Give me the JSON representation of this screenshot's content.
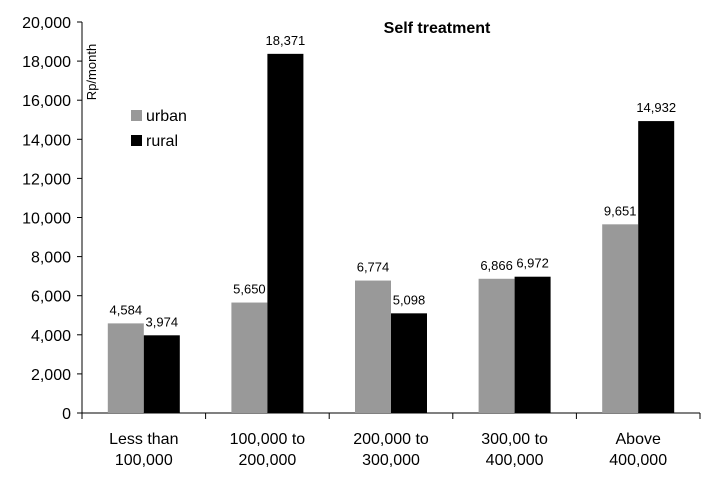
{
  "chart_data": {
    "type": "bar",
    "title": "Self treatment",
    "ylabel": "Rp/month",
    "xlabel": "",
    "categories": [
      [
        "Less than",
        "100,000"
      ],
      [
        "100,000 to",
        "200,000"
      ],
      [
        "200,000 to",
        "300,000"
      ],
      [
        "300,00 to",
        "400,000"
      ],
      [
        "Above",
        "400,000"
      ]
    ],
    "series": [
      {
        "name": "urban",
        "color": "#999999",
        "values": [
          4584,
          5650,
          6774,
          6866,
          9651
        ],
        "labels": [
          "4,584",
          "5,650",
          "6,774",
          "6,866",
          "9,651"
        ]
      },
      {
        "name": "rural",
        "color": "#000000",
        "values": [
          3974,
          18371,
          5098,
          6972,
          14932
        ],
        "labels": [
          "3,974",
          "18,371",
          "5,098",
          "6,972",
          "14,932"
        ]
      }
    ],
    "ylim": [
      0,
      20000
    ],
    "yticks": [
      0,
      2000,
      4000,
      6000,
      8000,
      10000,
      12000,
      14000,
      16000,
      18000,
      20000
    ],
    "ytick_labels": [
      "0",
      "2,000",
      "4,000",
      "6,000",
      "8,000",
      "10,000",
      "12,000",
      "14,000",
      "16,000",
      "18,000",
      "20,000"
    ],
    "grid": false,
    "legend_position": "upper-left"
  }
}
